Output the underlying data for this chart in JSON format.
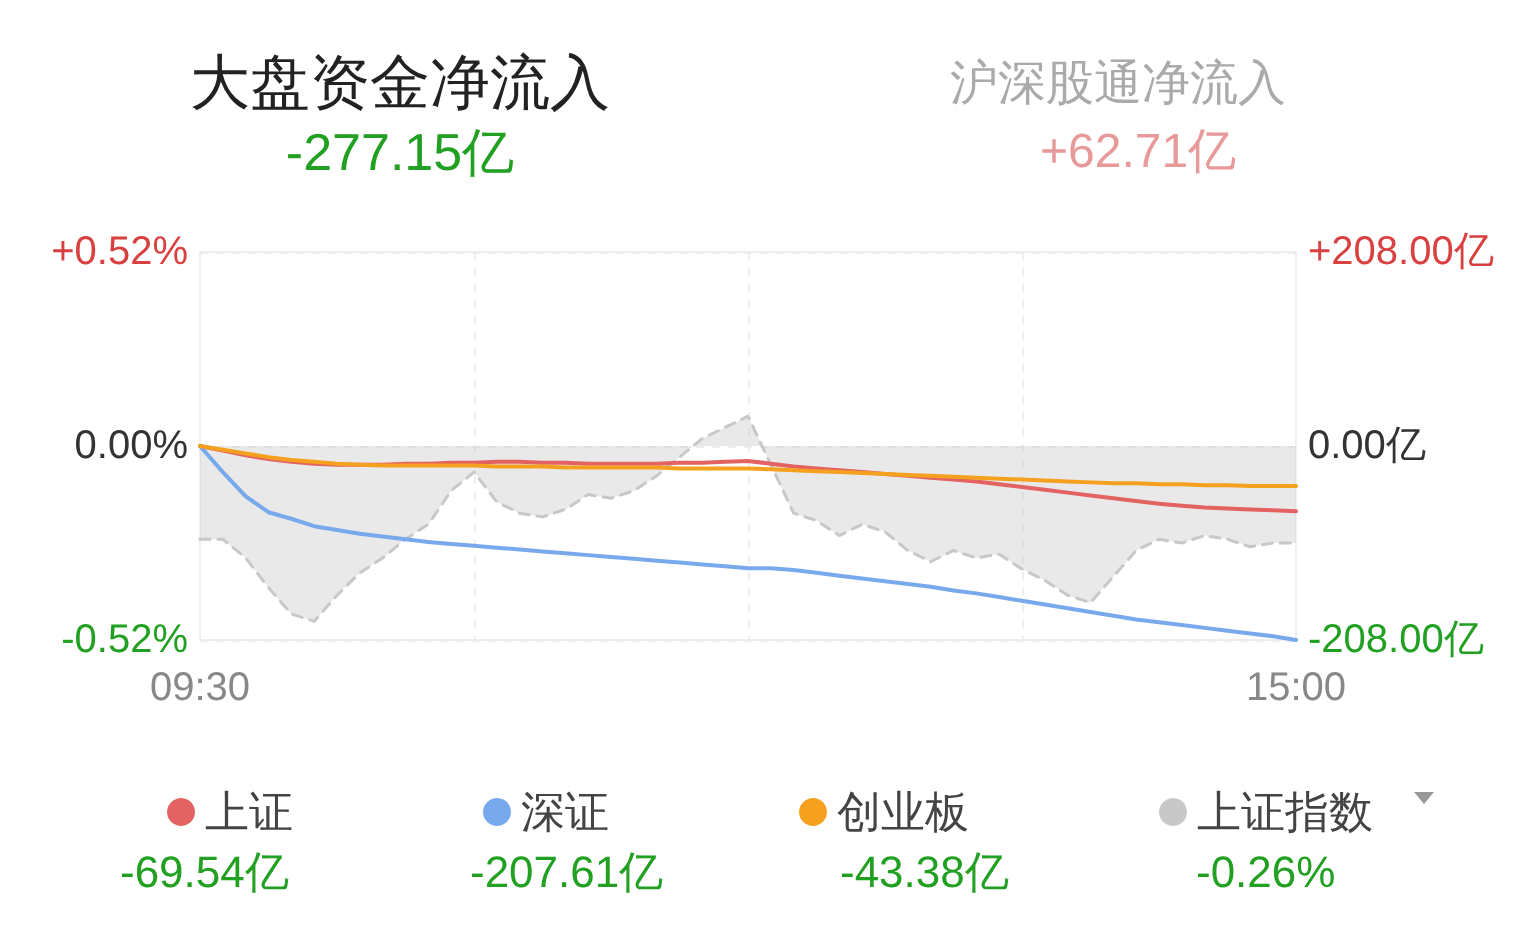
{
  "chart_data": {
    "type": "line",
    "title": "大盘资金净流入",
    "subtitle": "-277.15亿",
    "annotations": [
      "沪深股通净流入",
      "+62.71亿",
      "-69.54亿",
      "-207.61亿",
      "-43.38亿",
      "-0.26%"
    ],
    "categories": [
      "09:30",
      null,
      null,
      null,
      null,
      null,
      null,
      null,
      null,
      null,
      null,
      null,
      null,
      null,
      null,
      null,
      null,
      null,
      null,
      null,
      null,
      null,
      null,
      null,
      null,
      null,
      null,
      null,
      null,
      null,
      null,
      null,
      null,
      null,
      null,
      null,
      null,
      null,
      null,
      null,
      null,
      null,
      null,
      null,
      null,
      null,
      null,
      null,
      "15:00"
    ],
    "series": [
      {
        "name": "上证",
        "color": "#e36262",
        "axis": "y2",
        "values": [
          0,
          -5,
          -10,
          -14,
          -17,
          -19,
          -20,
          -20,
          -20,
          -19,
          -19,
          -18,
          -18,
          -17,
          -17,
          -18,
          -18,
          -19,
          -19,
          -19,
          -19,
          -18,
          -18,
          -17,
          -16,
          -19,
          -22,
          -24,
          -26,
          -28,
          -30,
          -32,
          -34,
          -36,
          -38,
          -41,
          -44,
          -47,
          -50,
          -53,
          -56,
          -59,
          -62,
          -64,
          -66,
          -67,
          -68,
          -69,
          -70
        ]
      },
      {
        "name": "深证",
        "color": "#78a9ec",
        "axis": "y2",
        "values": [
          0,
          -28,
          -54,
          -71,
          -78,
          -86,
          -90,
          -94,
          -97,
          -100,
          -103,
          -105,
          -107,
          -109,
          -111,
          -113,
          -115,
          -117,
          -119,
          -121,
          -123,
          -125,
          -127,
          -129,
          -131,
          -131,
          -133,
          -136,
          -139,
          -142,
          -145,
          -148,
          -151,
          -155,
          -158,
          -162,
          -166,
          -170,
          -174,
          -178,
          -182,
          -186,
          -189,
          -192,
          -195,
          -198,
          -201,
          -204,
          -208
        ]
      },
      {
        "name": "创业板",
        "color": "#f5a11f",
        "axis": "y2",
        "values": [
          0,
          -4,
          -8,
          -12,
          -15,
          -17,
          -19,
          -20,
          -21,
          -21,
          -21,
          -21,
          -21,
          -22,
          -22,
          -22,
          -23,
          -23,
          -23,
          -23,
          -23,
          -24,
          -24,
          -24,
          -24,
          -25,
          -26,
          -27,
          -28,
          -29,
          -30,
          -31,
          -32,
          -33,
          -34,
          -35,
          -36,
          -37,
          -38,
          -39,
          -40,
          -40,
          -41,
          -41,
          -42,
          -42,
          -43,
          -43,
          -43
        ]
      },
      {
        "name": "上证指数",
        "color": "#c8c8c8",
        "type": "area",
        "line_style": "dashed",
        "values": [
          -0.25,
          -0.25,
          -0.3,
          -0.38,
          -0.45,
          -0.47,
          -0.4,
          -0.34,
          -0.3,
          -0.25,
          -0.21,
          -0.12,
          -0.07,
          -0.15,
          -0.18,
          -0.19,
          -0.17,
          -0.13,
          -0.14,
          -0.12,
          -0.08,
          -0.03,
          0.02,
          0.05,
          0.08,
          -0.05,
          -0.18,
          -0.2,
          -0.24,
          -0.21,
          -0.23,
          -0.28,
          -0.31,
          -0.28,
          -0.3,
          -0.29,
          -0.33,
          -0.36,
          -0.4,
          -0.42,
          -0.35,
          -0.28,
          -0.25,
          -0.26,
          -0.24,
          -0.25,
          -0.27,
          -0.26,
          -0.26
        ]
      }
    ],
    "ylim": [
      -0.52,
      0.52
    ],
    "yticks": [
      {
        "value": -0.52,
        "label": "-0.52%"
      },
      {
        "value": 0,
        "label": "0.00%"
      },
      {
        "value": 0.52,
        "label": "+0.52%"
      }
    ],
    "y2lim": [
      -208,
      208
    ],
    "y2ticks": [
      {
        "value": -208,
        "label": "-208.00亿"
      },
      {
        "value": 0,
        "label": "0.00亿"
      },
      {
        "value": 208,
        "label": "+208.00亿"
      }
    ],
    "grid": true,
    "legend": "bottom",
    "marker": "none",
    "line_style": "solid"
  }
}
